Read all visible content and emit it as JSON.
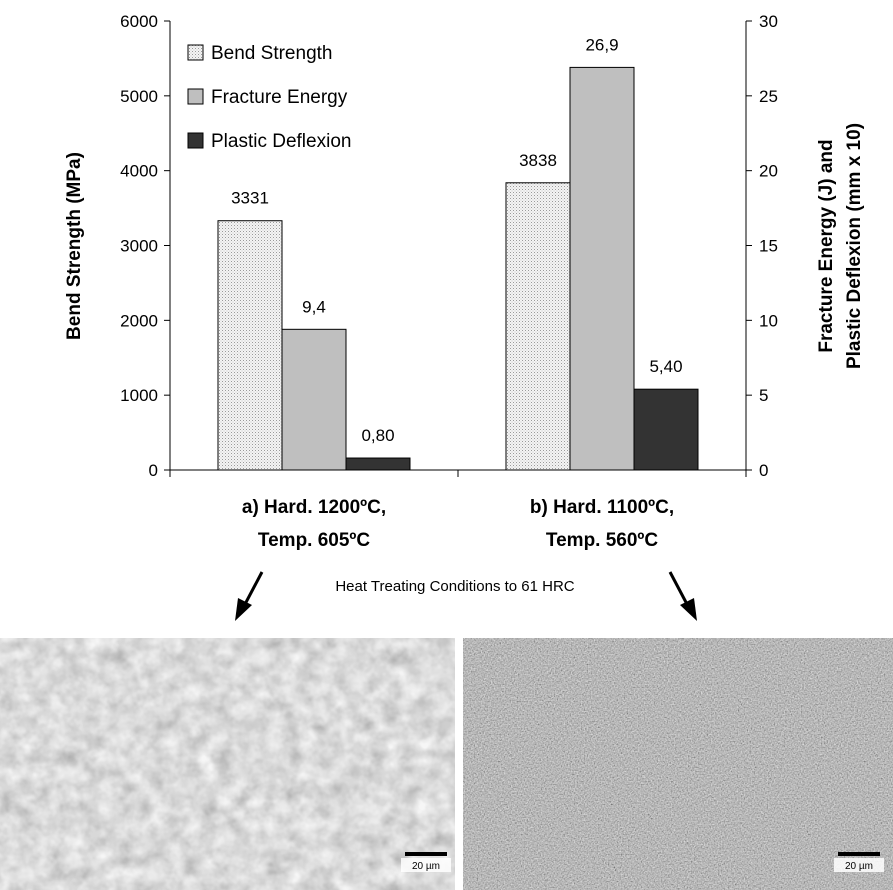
{
  "chart_data": {
    "type": "bar",
    "categories": [
      [
        "a) Hard. 1200ºC,",
        "Temp. 605ºC"
      ],
      [
        "b) Hard. 1100ºC,",
        "Temp. 560ºC"
      ]
    ],
    "series": [
      {
        "name": "Bend Strength",
        "axis": "left",
        "values": [
          3331,
          3838
        ],
        "labels": [
          "3331",
          "3838"
        ],
        "color": "#f0f0f0",
        "pattern": "dots"
      },
      {
        "name": "Fracture Energy",
        "axis": "right",
        "values": [
          9.4,
          26.9
        ],
        "labels": [
          "9,4",
          "26,9"
        ],
        "color": "#bfbfbf"
      },
      {
        "name": "Plastic Deflexion",
        "axis": "right",
        "values": [
          0.8,
          5.4
        ],
        "labels": [
          "0,80",
          "5,40"
        ],
        "color": "#333333"
      }
    ],
    "ylabel": "Bend Strength (MPa)",
    "y2label": [
      "Fracture Energy (J) and",
      "Plastic Deflexion (mm x 10)"
    ],
    "ylim": [
      0,
      6000
    ],
    "y2lim": [
      0,
      30
    ],
    "yticks": [
      0,
      1000,
      2000,
      3000,
      4000,
      5000,
      6000
    ],
    "y2ticks": [
      0,
      5,
      10,
      15,
      20,
      25,
      30
    ],
    "legend_position": "top-left",
    "grid": false
  },
  "caption": "Heat Treating Conditions to 61 HRC",
  "micrographs": [
    {
      "scale_label": "20 µm"
    },
    {
      "scale_label": "20 µm"
    }
  ]
}
